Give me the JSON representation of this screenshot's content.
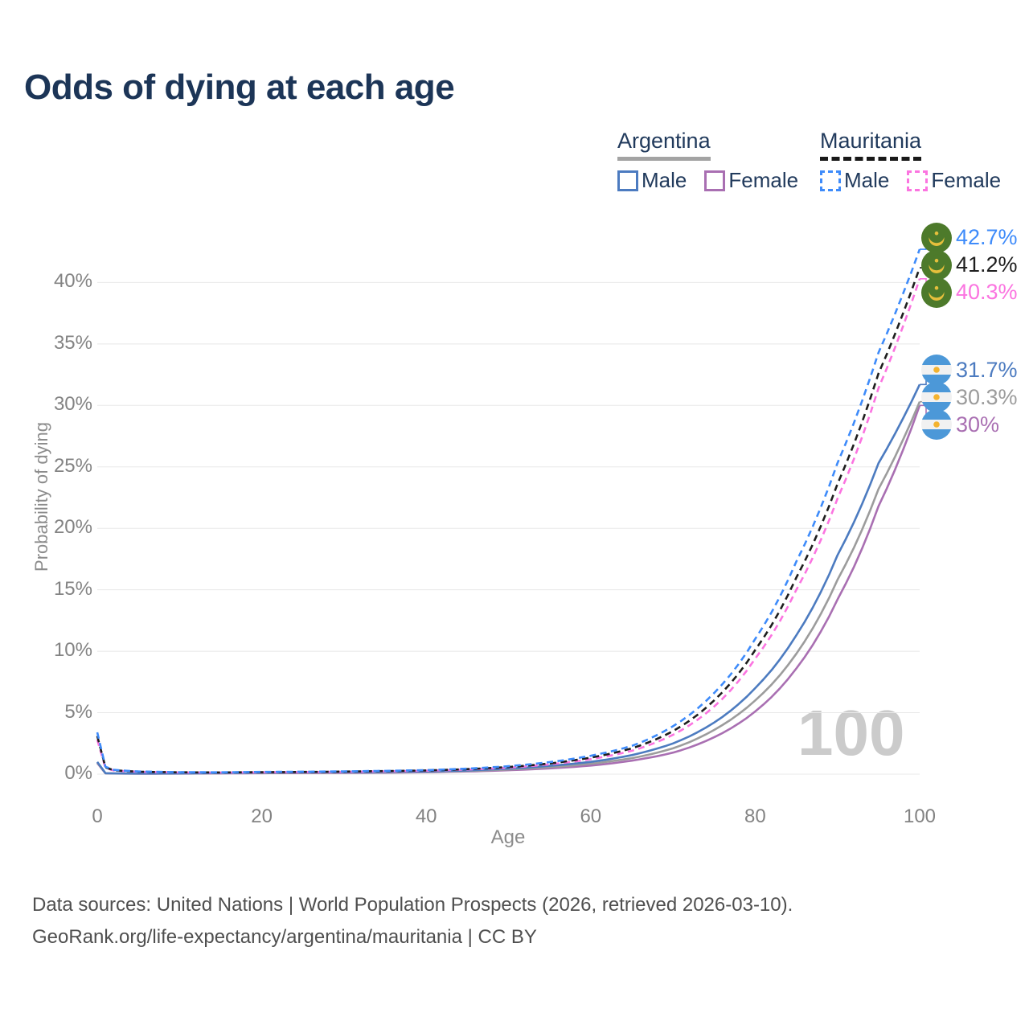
{
  "title": "Odds of dying at each age",
  "watermark": "100",
  "footer": {
    "line1": "Data sources: United Nations | World Population Prospects (2026, retrieved 2026-03-10).",
    "line2": "GeoRank.org/life-expectancy/argentina/mauritania | CC BY"
  },
  "legend": {
    "groups": [
      {
        "name": "Argentina",
        "style": "solid",
        "underline_color": "#a3a3a3",
        "items": [
          {
            "label": "Male",
            "color": "#4c7bc0"
          },
          {
            "label": "Female",
            "color": "#a96fb2"
          }
        ]
      },
      {
        "name": "Mauritania",
        "style": "dashed",
        "underline_color": "#191919",
        "items": [
          {
            "label": "Male",
            "color": "#3e8bfa"
          },
          {
            "label": "Female",
            "color": "#fb74e0"
          }
        ]
      }
    ]
  },
  "chart_data": {
    "type": "line",
    "title": "Odds of dying at each age",
    "xlabel": "Age",
    "ylabel": "Probability of dying",
    "xlim": [
      0,
      100
    ],
    "ylim": [
      0,
      44
    ],
    "grid": true,
    "legend_position": "top-right",
    "xticks": [
      0,
      20,
      40,
      60,
      80,
      100
    ],
    "yticks": [
      0,
      5,
      10,
      15,
      20,
      25,
      30,
      35,
      40
    ],
    "ytick_suffix": "%",
    "x": [
      0,
      1,
      2,
      5,
      10,
      15,
      20,
      25,
      30,
      35,
      40,
      45,
      50,
      55,
      60,
      65,
      70,
      75,
      80,
      85,
      90,
      95,
      100
    ],
    "series": [
      {
        "name": "Mauritania Male",
        "country": "mauritania",
        "dash": true,
        "color": "#3e8bfa",
        "end_label": "42.7%",
        "values": [
          3.4,
          0.6,
          0.35,
          0.22,
          0.16,
          0.15,
          0.18,
          0.2,
          0.23,
          0.27,
          0.33,
          0.45,
          0.65,
          0.98,
          1.5,
          2.3,
          3.9,
          6.6,
          11.0,
          17.3,
          25.3,
          34.3,
          42.7
        ]
      },
      {
        "name": "Mauritania Both sexes",
        "country": "mauritania",
        "dash": true,
        "color": "#1e1e1e",
        "end_label": "41.2%",
        "values": [
          3.1,
          0.55,
          0.32,
          0.2,
          0.15,
          0.14,
          0.16,
          0.18,
          0.21,
          0.25,
          0.3,
          0.41,
          0.58,
          0.87,
          1.35,
          2.1,
          3.5,
          6.0,
          10.1,
          16.0,
          23.6,
          32.6,
          41.2
        ]
      },
      {
        "name": "Mauritania Female",
        "country": "mauritania",
        "dash": true,
        "color": "#fb74e0",
        "end_label": "40.3%",
        "values": [
          2.8,
          0.5,
          0.3,
          0.19,
          0.14,
          0.13,
          0.15,
          0.17,
          0.19,
          0.23,
          0.28,
          0.38,
          0.53,
          0.8,
          1.22,
          1.9,
          3.2,
          5.5,
          9.4,
          15.0,
          22.4,
          31.4,
          40.3
        ]
      },
      {
        "name": "Argentina Male",
        "country": "argentina",
        "dash": false,
        "color": "#4c7bc0",
        "end_label": "31.7%",
        "values": [
          1.0,
          0.08,
          0.06,
          0.05,
          0.06,
          0.1,
          0.13,
          0.15,
          0.16,
          0.18,
          0.22,
          0.3,
          0.45,
          0.68,
          1.0,
          1.55,
          2.5,
          4.2,
          7.0,
          11.3,
          17.8,
          25.3,
          31.7
        ]
      },
      {
        "name": "Argentina Both sexes",
        "country": "argentina",
        "dash": false,
        "color": "#9c9c9c",
        "end_label": "30.3%",
        "values": [
          0.95,
          0.07,
          0.055,
          0.045,
          0.05,
          0.08,
          0.1,
          0.12,
          0.13,
          0.15,
          0.19,
          0.26,
          0.38,
          0.57,
          0.85,
          1.3,
          2.1,
          3.6,
          6.0,
          9.8,
          15.8,
          23.2,
          30.3
        ]
      },
      {
        "name": "Argentina Female",
        "country": "argentina",
        "dash": false,
        "color": "#a96fb2",
        "end_label": "30%",
        "values": [
          0.9,
          0.065,
          0.05,
          0.04,
          0.045,
          0.06,
          0.08,
          0.09,
          0.1,
          0.12,
          0.16,
          0.22,
          0.32,
          0.47,
          0.7,
          1.1,
          1.75,
          3.0,
          5.1,
          8.6,
          14.2,
          21.8,
          30.0
        ]
      }
    ],
    "flags": {
      "mauritania": {
        "green": "#4d7a2b",
        "gold": "#e6bf3c"
      },
      "argentina": {
        "blue": "#4c98d8",
        "white": "#f1f1f1",
        "sun": "#f3b330"
      }
    }
  }
}
